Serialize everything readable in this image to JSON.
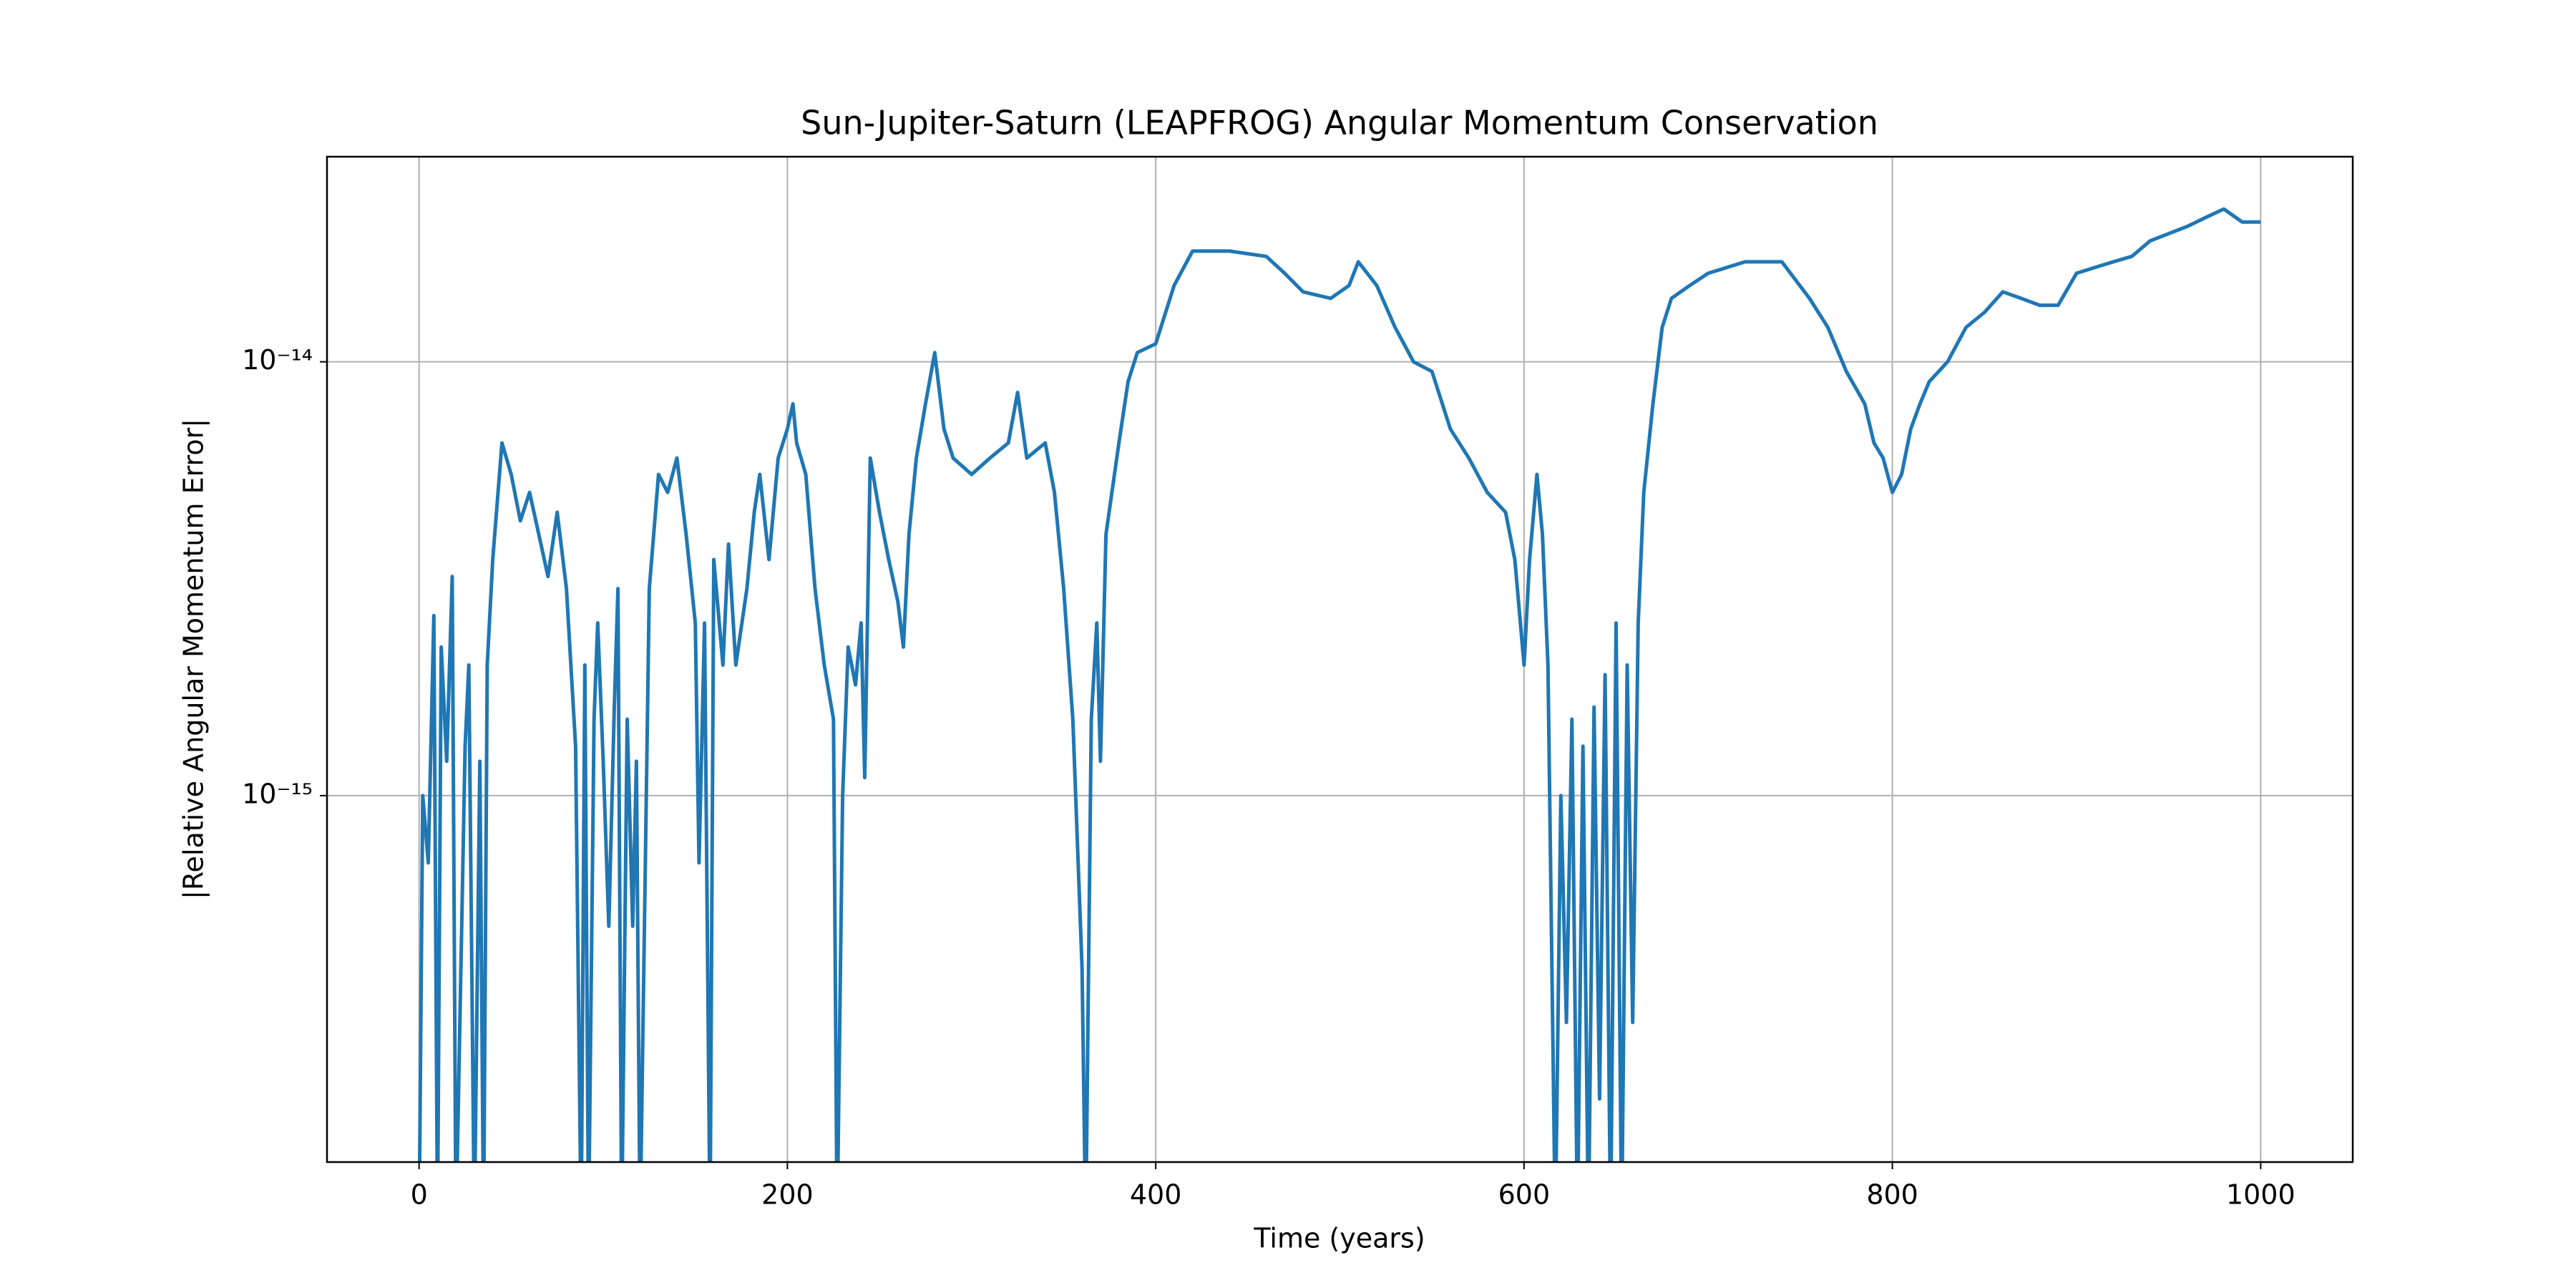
{
  "chart_data": {
    "type": "line",
    "title": "Sun-Jupiter-Saturn (LEAPFROG) Angular Momentum Conservation",
    "xlabel": "Time (years)",
    "ylabel": "|Relative Angular Momentum Error|",
    "yscale": "log",
    "grid": true,
    "color": "#1f77b4",
    "xlim": [
      -50,
      1050
    ],
    "xticks": [
      0,
      200,
      400,
      600,
      800,
      1000
    ],
    "ylim": [
      1.43e-16,
      2.97e-14
    ],
    "yticks": [
      {
        "value": 1e-15,
        "label": "10⁻¹⁵"
      },
      {
        "value": 1e-14,
        "label": "10⁻¹⁴"
      }
    ],
    "x": [
      0,
      2,
      5,
      8,
      10,
      12,
      15,
      18,
      20,
      25,
      27,
      30,
      33,
      35,
      37,
      40,
      45,
      50,
      55,
      60,
      65,
      70,
      75,
      80,
      85,
      88,
      90,
      92,
      95,
      97,
      100,
      103,
      106,
      108,
      110,
      113,
      116,
      118,
      120,
      125,
      130,
      135,
      140,
      145,
      150,
      152,
      155,
      158,
      160,
      165,
      168,
      172,
      178,
      182,
      185,
      190,
      195,
      200,
      203,
      205,
      210,
      215,
      220,
      225,
      227,
      230,
      233,
      237,
      240,
      242,
      245,
      250,
      255,
      260,
      263,
      266,
      270,
      275,
      280,
      285,
      290,
      300,
      310,
      320,
      325,
      330,
      340,
      345,
      350,
      355,
      360,
      362,
      365,
      368,
      370,
      373,
      380,
      385,
      390,
      400,
      410,
      420,
      440,
      460,
      470,
      480,
      495,
      505,
      510,
      520,
      530,
      540,
      550,
      560,
      570,
      580,
      590,
      595,
      600,
      603,
      607,
      610,
      613,
      617,
      620,
      623,
      626,
      629,
      632,
      635,
      638,
      641,
      644,
      647,
      650,
      653,
      656,
      659,
      662,
      665,
      670,
      675,
      680,
      690,
      700,
      720,
      740,
      755,
      765,
      775,
      785,
      790,
      795,
      800,
      805,
      810,
      815,
      820,
      830,
      840,
      850,
      860,
      870,
      880,
      890,
      900,
      910,
      920,
      930,
      940,
      960,
      970,
      980,
      990,
      1000
    ],
    "values": [
      1e-16,
      1e-15,
      7e-16,
      2.6e-15,
      1e-16,
      2.2e-15,
      1.2e-15,
      3.2e-15,
      1e-16,
      1.3e-15,
      2e-15,
      1e-16,
      1.2e-15,
      1e-16,
      2e-15,
      3.5e-15,
      6.5e-15,
      5.5e-15,
      4.3e-15,
      5e-15,
      4e-15,
      3.2e-15,
      4.5e-15,
      3e-15,
      1.3e-15,
      1e-16,
      2e-15,
      1e-16,
      1.5e-15,
      2.5e-15,
      1.2e-15,
      5e-16,
      1.6e-15,
      3e-15,
      1e-16,
      1.5e-15,
      5e-16,
      1.2e-15,
      1e-16,
      3e-15,
      5.5e-15,
      5e-15,
      6e-15,
      4e-15,
      2.5e-15,
      7e-16,
      2.5e-15,
      1e-16,
      3.5e-15,
      2e-15,
      3.8e-15,
      2e-15,
      3e-15,
      4.5e-15,
      5.5e-15,
      3.5e-15,
      6e-15,
      7e-15,
      8e-15,
      6.5e-15,
      5.5e-15,
      3e-15,
      2e-15,
      1.5e-15,
      1e-16,
      1e-15,
      2.2e-15,
      1.8e-15,
      2.5e-15,
      1.1e-15,
      6e-15,
      4.5e-15,
      3.5e-15,
      2.8e-15,
      2.2e-15,
      4e-15,
      6e-15,
      8e-15,
      1.05e-14,
      7e-15,
      6e-15,
      5.5e-15,
      6e-15,
      6.5e-15,
      8.5e-15,
      6e-15,
      6.5e-15,
      5e-15,
      3e-15,
      1.5e-15,
      4e-16,
      1e-16,
      1.5e-15,
      2.5e-15,
      1.2e-15,
      4e-15,
      6.5e-15,
      9e-15,
      1.05e-14,
      1.1e-14,
      1.5e-14,
      1.8e-14,
      1.8e-14,
      1.75e-14,
      1.6e-14,
      1.45e-14,
      1.4e-14,
      1.5e-14,
      1.7e-14,
      1.5e-14,
      1.2e-14,
      1e-14,
      9.5e-15,
      7e-15,
      6e-15,
      5e-15,
      4.5e-15,
      3.5e-15,
      2e-15,
      3.5e-15,
      5.5e-15,
      4e-15,
      2e-15,
      1e-16,
      1e-15,
      3e-16,
      1.5e-15,
      1e-16,
      1.3e-15,
      1e-16,
      1.6e-15,
      2e-16,
      1.9e-15,
      1e-16,
      2.5e-15,
      1e-16,
      2e-15,
      3e-16,
      2.5e-15,
      5e-15,
      8e-15,
      1.2e-14,
      1.4e-14,
      1.5e-14,
      1.6e-14,
      1.7e-14,
      1.7e-14,
      1.4e-14,
      1.2e-14,
      9.5e-15,
      8e-15,
      6.5e-15,
      6e-15,
      5e-15,
      5.5e-15,
      7e-15,
      8e-15,
      9e-15,
      1e-14,
      1.2e-14,
      1.3e-14,
      1.45e-14,
      1.4e-14,
      1.35e-14,
      1.35e-14,
      1.6e-14,
      1.65e-14,
      1.7e-14,
      1.75e-14,
      1.9e-14,
      2.05e-14,
      2.15e-14,
      2.25e-14,
      2.1e-14,
      2.1e-14
    ]
  }
}
